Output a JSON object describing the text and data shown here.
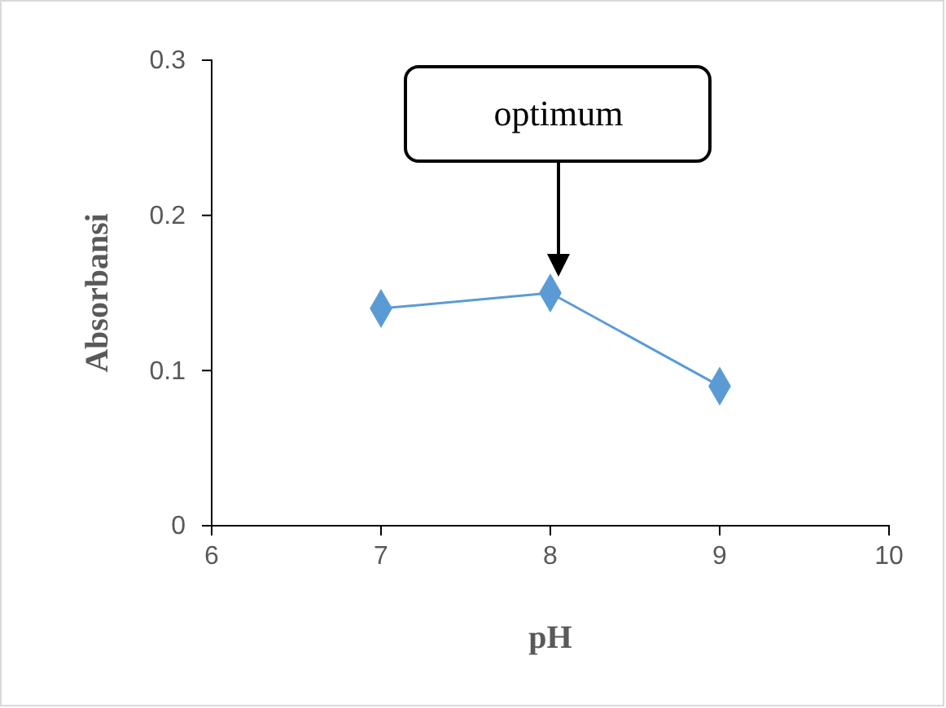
{
  "chart_data": {
    "type": "line",
    "xlabel": "pH",
    "ylabel": "Absorbansi",
    "x": [
      7,
      8,
      9
    ],
    "series": [
      {
        "color": "#5b9bd5",
        "values": [
          0.14,
          0.15,
          0.09
        ]
      }
    ],
    "xlim": [
      6,
      10
    ],
    "xticks": [
      6,
      7,
      8,
      9,
      10
    ],
    "ylim": [
      0,
      0.3
    ],
    "yticks": [
      {
        "value": 0,
        "label": "0"
      },
      {
        "value": 0.1,
        "label": "0.1"
      },
      {
        "value": 0.2,
        "label": "0.2"
      },
      {
        "value": 0.3,
        "label": "0.3"
      }
    ],
    "marker": "diamond",
    "line_style": "solid",
    "grid": false,
    "annotations": [
      "optimum"
    ]
  }
}
